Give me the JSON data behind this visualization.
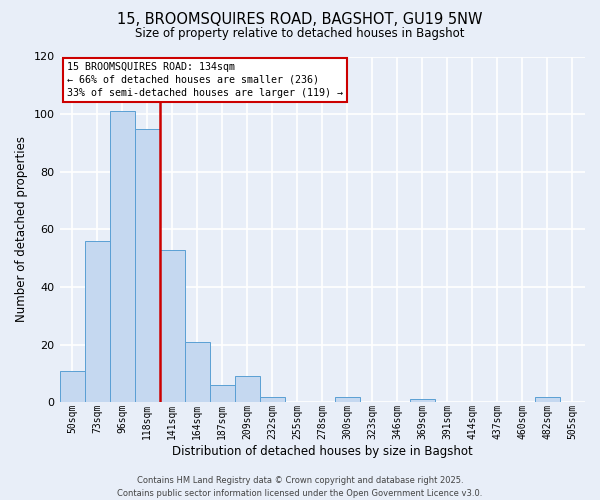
{
  "title_line1": "15, BROOMSQUIRES ROAD, BAGSHOT, GU19 5NW",
  "title_line2": "Size of property relative to detached houses in Bagshot",
  "xlabel": "Distribution of detached houses by size in Bagshot",
  "ylabel": "Number of detached properties",
  "bar_labels": [
    "50sqm",
    "73sqm",
    "96sqm",
    "118sqm",
    "141sqm",
    "164sqm",
    "187sqm",
    "209sqm",
    "232sqm",
    "255sqm",
    "278sqm",
    "300sqm",
    "323sqm",
    "346sqm",
    "369sqm",
    "391sqm",
    "414sqm",
    "437sqm",
    "460sqm",
    "482sqm",
    "505sqm"
  ],
  "bar_values": [
    11,
    56,
    101,
    95,
    53,
    21,
    6,
    9,
    2,
    0,
    0,
    2,
    0,
    0,
    1,
    0,
    0,
    0,
    0,
    2,
    0
  ],
  "bar_color": "#c5d8f0",
  "bar_edge_color": "#5a9fd4",
  "ylim": [
    0,
    120
  ],
  "yticks": [
    0,
    20,
    40,
    60,
    80,
    100,
    120
  ],
  "vline_position": 3.5,
  "vline_color": "#cc0000",
  "annotation_text": "15 BROOMSQUIRES ROAD: 134sqm\n← 66% of detached houses are smaller (236)\n33% of semi-detached houses are larger (119) →",
  "annotation_box_color": "#ffffff",
  "annotation_box_edge": "#cc0000",
  "footer_line1": "Contains HM Land Registry data © Crown copyright and database right 2025.",
  "footer_line2": "Contains public sector information licensed under the Open Government Licence v3.0.",
  "bg_color": "#e8eef8",
  "plot_bg_color": "#e8eef8",
  "grid_color": "#ffffff"
}
